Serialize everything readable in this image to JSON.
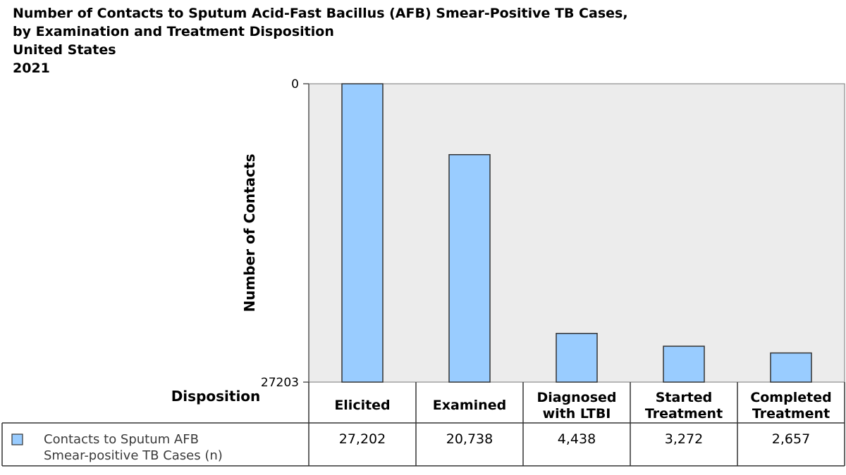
{
  "title": {
    "line1": "Number of Contacts to Sputum Acid-Fast Bacillus (AFB) Smear-Positive TB Cases,",
    "line2": "by Examination and Treatment Disposition",
    "line3": "United States",
    "line4": "2021"
  },
  "colors": {
    "bar_fill": "#99ccff",
    "bar_stroke": "#333333",
    "plot_bg": "#ececec"
  },
  "chart_data": {
    "type": "bar",
    "title": "Number of Contacts to Sputum Acid-Fast Bacillus (AFB) Smear-Positive TB Cases, by Examination and Treatment Disposition",
    "ylabel": "Number of Contacts",
    "xlabel": "Disposition",
    "ylim": [
      0,
      27203
    ],
    "yticks": [
      "0",
      "27203"
    ],
    "categories": [
      [
        "Elicited"
      ],
      [
        "Examined"
      ],
      [
        "Diagnosed",
        "with LTBI"
      ],
      [
        "Started",
        "Treatment"
      ],
      [
        "Completed",
        "Treatment"
      ]
    ],
    "series": [
      {
        "name": "Contacts to Sputum AFB Smear-positive TB Cases (n)",
        "name_lines": [
          "Contacts to Sputum AFB",
          "Smear-positive TB Cases (n)"
        ],
        "values": [
          27202,
          20738,
          4438,
          3272,
          2657
        ],
        "value_labels": [
          "27,202",
          "20,738",
          "4,438",
          "3,272",
          "2,657"
        ]
      }
    ],
    "grid": false,
    "legend": "table-bottom-left"
  }
}
